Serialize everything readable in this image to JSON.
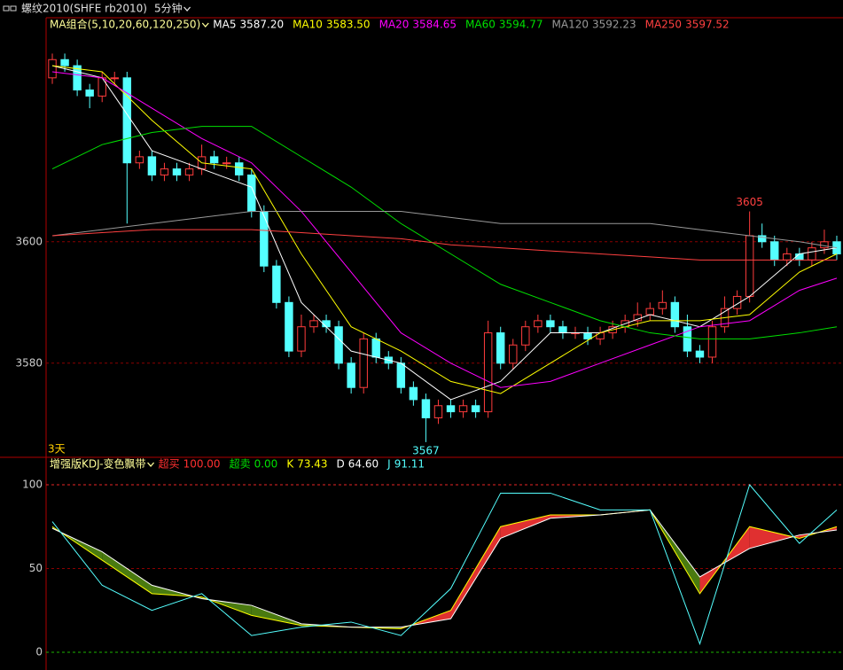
{
  "header": {
    "title": "螺纹2010(SHFE rb2010)",
    "period": "5分钟"
  },
  "chart_data": [
    {
      "type": "candlestick",
      "title": "MA组合(5,10,20,60,120,250)",
      "x_label": "3天",
      "xlim": [
        -0.5,
        63.5
      ],
      "ylim": [
        3564.5,
        3636.9
      ],
      "yticks": [
        3580,
        3600
      ],
      "grid": true,
      "grid_color": "#8b0000",
      "up_color": "#ff3c3c",
      "down_color": "#54ffff",
      "open": [
        3627,
        3630,
        3629,
        3625,
        3624,
        3627,
        3627,
        3613,
        3614,
        3611,
        3612,
        3611,
        3612,
        3614,
        3613,
        3613,
        3611,
        3605,
        3596,
        3590,
        3582,
        3586,
        3587,
        3586,
        3580,
        3576,
        3584,
        3581,
        3580,
        3576,
        3574,
        3571,
        3573,
        3572,
        3573,
        3572,
        3585,
        3580,
        3583,
        3586,
        3587,
        3586,
        3585,
        3585,
        3584,
        3585,
        3586,
        3587,
        3588,
        3589,
        3590,
        3586,
        3582,
        3581,
        3586,
        3589,
        3591,
        3601,
        3600,
        3597,
        3598,
        3597,
        3599,
        3600
      ],
      "high": [
        3631,
        3631,
        3630,
        3626,
        3628,
        3628,
        3628,
        3615,
        3615,
        3613,
        3613,
        3613,
        3616,
        3615,
        3614,
        3614,
        3612,
        3606,
        3597,
        3591,
        3588,
        3588,
        3588,
        3587,
        3581,
        3585,
        3585,
        3582,
        3581,
        3577,
        3575,
        3574,
        3574,
        3574,
        3574,
        3587,
        3586,
        3584,
        3587,
        3588,
        3588,
        3587,
        3586,
        3586,
        3586,
        3587,
        3588,
        3590,
        3590,
        3592,
        3591,
        3588,
        3583,
        3587,
        3591,
        3592,
        3605,
        3603,
        3601,
        3599,
        3599,
        3600,
        3602,
        3601
      ],
      "low": [
        3626,
        3628,
        3624,
        3622,
        3623,
        3626,
        3603,
        3612,
        3610,
        3610,
        3610,
        3610,
        3611,
        3612,
        3612,
        3610,
        3604,
        3595,
        3589,
        3581,
        3581,
        3585,
        3585,
        3579,
        3575,
        3575,
        3580,
        3579,
        3575,
        3573,
        3567,
        3570,
        3571,
        3571,
        3571,
        3571,
        3579,
        3579,
        3582,
        3585,
        3585,
        3584,
        3584,
        3583,
        3583,
        3584,
        3585,
        3586,
        3587,
        3588,
        3585,
        3581,
        3580,
        3580,
        3585,
        3588,
        3590,
        3599,
        3596,
        3596,
        3596,
        3596,
        3598,
        3597
      ],
      "close": [
        3630,
        3629,
        3625,
        3624,
        3627,
        3627,
        3613,
        3614,
        3611,
        3612,
        3611,
        3612,
        3614,
        3613,
        3613,
        3611,
        3605,
        3596,
        3590,
        3582,
        3586,
        3587,
        3586,
        3580,
        3576,
        3584,
        3581,
        3580,
        3576,
        3574,
        3571,
        3573,
        3572,
        3573,
        3572,
        3585,
        3580,
        3583,
        3586,
        3587,
        3586,
        3585,
        3585,
        3584,
        3585,
        3586,
        3587,
        3588,
        3589,
        3590,
        3586,
        3582,
        3581,
        3586,
        3589,
        3591,
        3601,
        3600,
        3597,
        3598,
        3597,
        3599,
        3600,
        3598
      ],
      "annotations": [
        {
          "x": 56,
          "value": 3605,
          "color": "#ff4040"
        },
        {
          "x": 30,
          "value": 3567,
          "color": "#54ffff"
        }
      ],
      "ma_x": [
        0,
        4,
        8,
        12,
        16,
        20,
        24,
        28,
        32,
        36,
        40,
        44,
        48,
        52,
        56,
        60,
        63
      ],
      "series": [
        {
          "name": "MA5",
          "color": "#ffffff",
          "current": {
            "value": 3587.2,
            "label": "3587.20"
          },
          "values": [
            3629,
            3627,
            3615,
            3612,
            3609,
            3590,
            3582,
            3580,
            3574,
            3577,
            3585,
            3585,
            3588,
            3586,
            3591,
            3598,
            3599
          ]
        },
        {
          "name": "MA10",
          "color": "#ffff00",
          "current": {
            "value": 3583.5,
            "label": "3583.50"
          },
          "values": [
            3629,
            3628,
            3620,
            3613,
            3612,
            3598,
            3586,
            3582,
            3577,
            3575,
            3580,
            3585,
            3587,
            3587,
            3588,
            3595,
            3598
          ]
        },
        {
          "name": "MA20",
          "color": "#ff00ff",
          "current": {
            "value": 3584.65,
            "label": "3584.65"
          },
          "values": [
            3628,
            3627,
            3622,
            3617,
            3613,
            3605,
            3595,
            3585,
            3580,
            3576,
            3577,
            3580,
            3583,
            3586,
            3587,
            3592,
            3594
          ]
        },
        {
          "name": "MA60",
          "color": "#00e000",
          "current": {
            "value": 3594.77,
            "label": "3594.77"
          },
          "values": [
            3612,
            3616,
            3618,
            3619,
            3619,
            3614,
            3609,
            3603,
            3598,
            3593,
            3590,
            3587,
            3585,
            3584,
            3584,
            3585,
            3586
          ]
        },
        {
          "name": "MA120",
          "color": "#999999",
          "current": {
            "value": 3592.23,
            "label": "3592.23"
          },
          "values": [
            3601,
            3602,
            3603,
            3604,
            3605,
            3605,
            3605,
            3605,
            3604,
            3603,
            3603,
            3603,
            3603,
            3602,
            3601,
            3600,
            3599
          ]
        },
        {
          "name": "MA250",
          "color": "#ff4040",
          "current": {
            "value": 3597.52,
            "label": "3597.52"
          },
          "values": [
            3601,
            3601.5,
            3602,
            3602,
            3602,
            3601.5,
            3601,
            3600.5,
            3599.5,
            3599,
            3598.5,
            3598,
            3597.5,
            3597,
            3597,
            3597,
            3597
          ]
        }
      ]
    },
    {
      "type": "kdj",
      "title": "增强版KDJ-变色飘带",
      "xlim": [
        -0.5,
        63.5
      ],
      "ylim": [
        -10.6,
        116.4
      ],
      "yticks": [
        0,
        50,
        100
      ],
      "grid": true,
      "grid_color": "#8b0000",
      "up_fill": "#e03030",
      "down_fill": "#4a7a10",
      "levels": [
        {
          "name": "超买",
          "color": "#ff3030",
          "value": 100,
          "label": "100.00"
        },
        {
          "name": "超卖",
          "color": "#00e000",
          "value": 0,
          "label": "0.00"
        }
      ],
      "x": [
        0,
        4,
        8,
        12,
        16,
        20,
        24,
        28,
        32,
        36,
        40,
        44,
        48,
        52,
        56,
        60,
        63
      ],
      "series": [
        {
          "name": "K",
          "color": "#ffff00",
          "current": {
            "value": 73.43,
            "label": "73.43"
          },
          "values": [
            75,
            55,
            35,
            33,
            22,
            16,
            15,
            14,
            25,
            75,
            82,
            82,
            85,
            35,
            75,
            68,
            75
          ]
        },
        {
          "name": "D",
          "color": "#ffffff",
          "current": {
            "value": 64.6,
            "label": "64.60"
          },
          "values": [
            74,
            60,
            40,
            32,
            28,
            17,
            15,
            15,
            20,
            68,
            80,
            82,
            85,
            45,
            62,
            70,
            73
          ]
        },
        {
          "name": "J",
          "color": "#54ffff",
          "current": {
            "value": 91.11,
            "label": "91.11"
          },
          "values": [
            78,
            40,
            25,
            35,
            10,
            15,
            18,
            10,
            38,
            95,
            95,
            85,
            85,
            5,
            100,
            65,
            85
          ]
        }
      ]
    }
  ]
}
